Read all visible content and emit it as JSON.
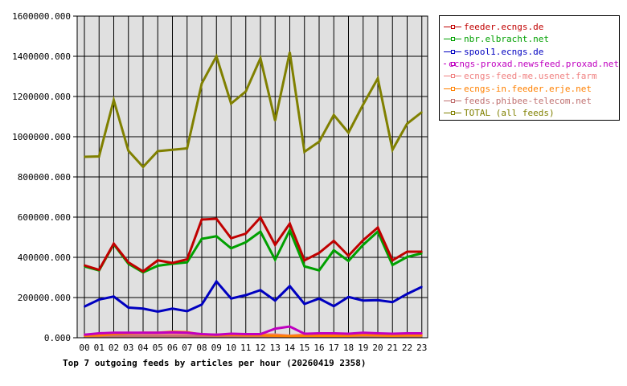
{
  "chart_data": {
    "type": "line",
    "title": "Top 7 outgoing feeds by articles per hour (20260419 2358)",
    "xlabel": "",
    "ylabel": "",
    "ylim": [
      0,
      1600000
    ],
    "y_ticks": [
      "0.000",
      "200000.000",
      "400000.000",
      "600000.000",
      "800000.000",
      "1000000.000",
      "1200000.000",
      "1400000.000",
      "1600000.000"
    ],
    "y_tick_values": [
      0,
      200000,
      400000,
      600000,
      800000,
      1000000,
      1200000,
      1400000,
      1600000
    ],
    "categories": [
      "00",
      "01",
      "02",
      "03",
      "04",
      "05",
      "06",
      "07",
      "08",
      "09",
      "10",
      "11",
      "12",
      "13",
      "14",
      "15",
      "16",
      "17",
      "18",
      "19",
      "20",
      "21",
      "22",
      "23"
    ],
    "grid": true,
    "legend_position": "right",
    "background": "#e0e0e0",
    "series": [
      {
        "name": "ecngs-feed-me.usenet.farm",
        "color": "#f08080",
        "values": [
          16000,
          16000,
          16000,
          16000,
          16000,
          16000,
          16000,
          16000,
          16000,
          16000,
          16000,
          16000,
          16000,
          16000,
          10000,
          16000,
          16000,
          16000,
          16000,
          16000,
          16000,
          16000,
          16000,
          16000
        ]
      },
      {
        "name": "feeds.phibee-telecom.net",
        "color": "#c07070",
        "values": [
          8000,
          8000,
          8000,
          8000,
          8000,
          8000,
          8000,
          8000,
          8000,
          8000,
          8000,
          8000,
          8000,
          8000,
          8000,
          8000,
          8000,
          8000,
          8000,
          8000,
          8000,
          8000,
          8000,
          8000
        ]
      },
      {
        "name": "ecngs-in.feeder.erje.net",
        "color": "#ff8000",
        "values": [
          10000,
          12000,
          18000,
          22000,
          25000,
          25000,
          30000,
          28000,
          15000,
          12000,
          14000,
          12000,
          12000,
          10000,
          8000,
          10000,
          10000,
          10000,
          10000,
          14000,
          12000,
          10000,
          12000,
          12000
        ]
      },
      {
        "name": "ecngs-proxad.newsfeed.proxad.net",
        "color": "#c000c0",
        "values": [
          15000,
          22000,
          25000,
          25000,
          25000,
          25000,
          27000,
          25000,
          18000,
          15000,
          20000,
          18000,
          18000,
          45000,
          56000,
          20000,
          22000,
          22000,
          20000,
          25000,
          22000,
          20000,
          22000,
          22000
        ]
      },
      {
        "name": "spool1.ecngs.de",
        "color": "#0000c0",
        "values": [
          155000,
          190000,
          205000,
          150000,
          145000,
          130000,
          145000,
          132000,
          165000,
          280000,
          195000,
          212000,
          237000,
          185000,
          257000,
          168000,
          195000,
          157000,
          203000,
          185000,
          187000,
          177000,
          218000,
          253000
        ]
      },
      {
        "name": "nbr.elbracht.net",
        "color": "#00a000",
        "values": [
          355000,
          335000,
          465000,
          368000,
          325000,
          358000,
          368000,
          375000,
          492000,
          505000,
          445000,
          475000,
          528000,
          388000,
          535000,
          355000,
          335000,
          435000,
          382000,
          462000,
          528000,
          362000,
          402000,
          420000
        ]
      },
      {
        "name": "feeder.ecngs.de",
        "color": "#c00000",
        "values": [
          360000,
          338000,
          468000,
          375000,
          330000,
          385000,
          372000,
          390000,
          588000,
          592000,
          495000,
          518000,
          598000,
          462000,
          568000,
          385000,
          422000,
          482000,
          408000,
          485000,
          548000,
          385000,
          428000,
          428000
        ]
      },
      {
        "name": "TOTAL (all feeds)",
        "color": "#808000",
        "values": [
          900000,
          902000,
          1182000,
          930000,
          850000,
          928000,
          935000,
          942000,
          1265000,
          1400000,
          1165000,
          1225000,
          1390000,
          1080000,
          1420000,
          925000,
          975000,
          1108000,
          1020000,
          1160000,
          1290000,
          935000,
          1065000,
          1122000
        ]
      }
    ],
    "legend": [
      {
        "name": "feeder.ecngs.de",
        "color": "#c00000"
      },
      {
        "name": "nbr.elbracht.net",
        "color": "#00a000"
      },
      {
        "name": "spool1.ecngs.de",
        "color": "#0000c0"
      },
      {
        "name": "ecngs-proxad.newsfeed.proxad.net",
        "color": "#c000c0"
      },
      {
        "name": "ecngs-feed-me.usenet.farm",
        "color": "#f08080"
      },
      {
        "name": "ecngs-in.feeder.erje.net",
        "color": "#ff8000"
      },
      {
        "name": "feeds.phibee-telecom.net",
        "color": "#c07070"
      },
      {
        "name": "TOTAL (all feeds)",
        "color": "#808000"
      }
    ]
  }
}
